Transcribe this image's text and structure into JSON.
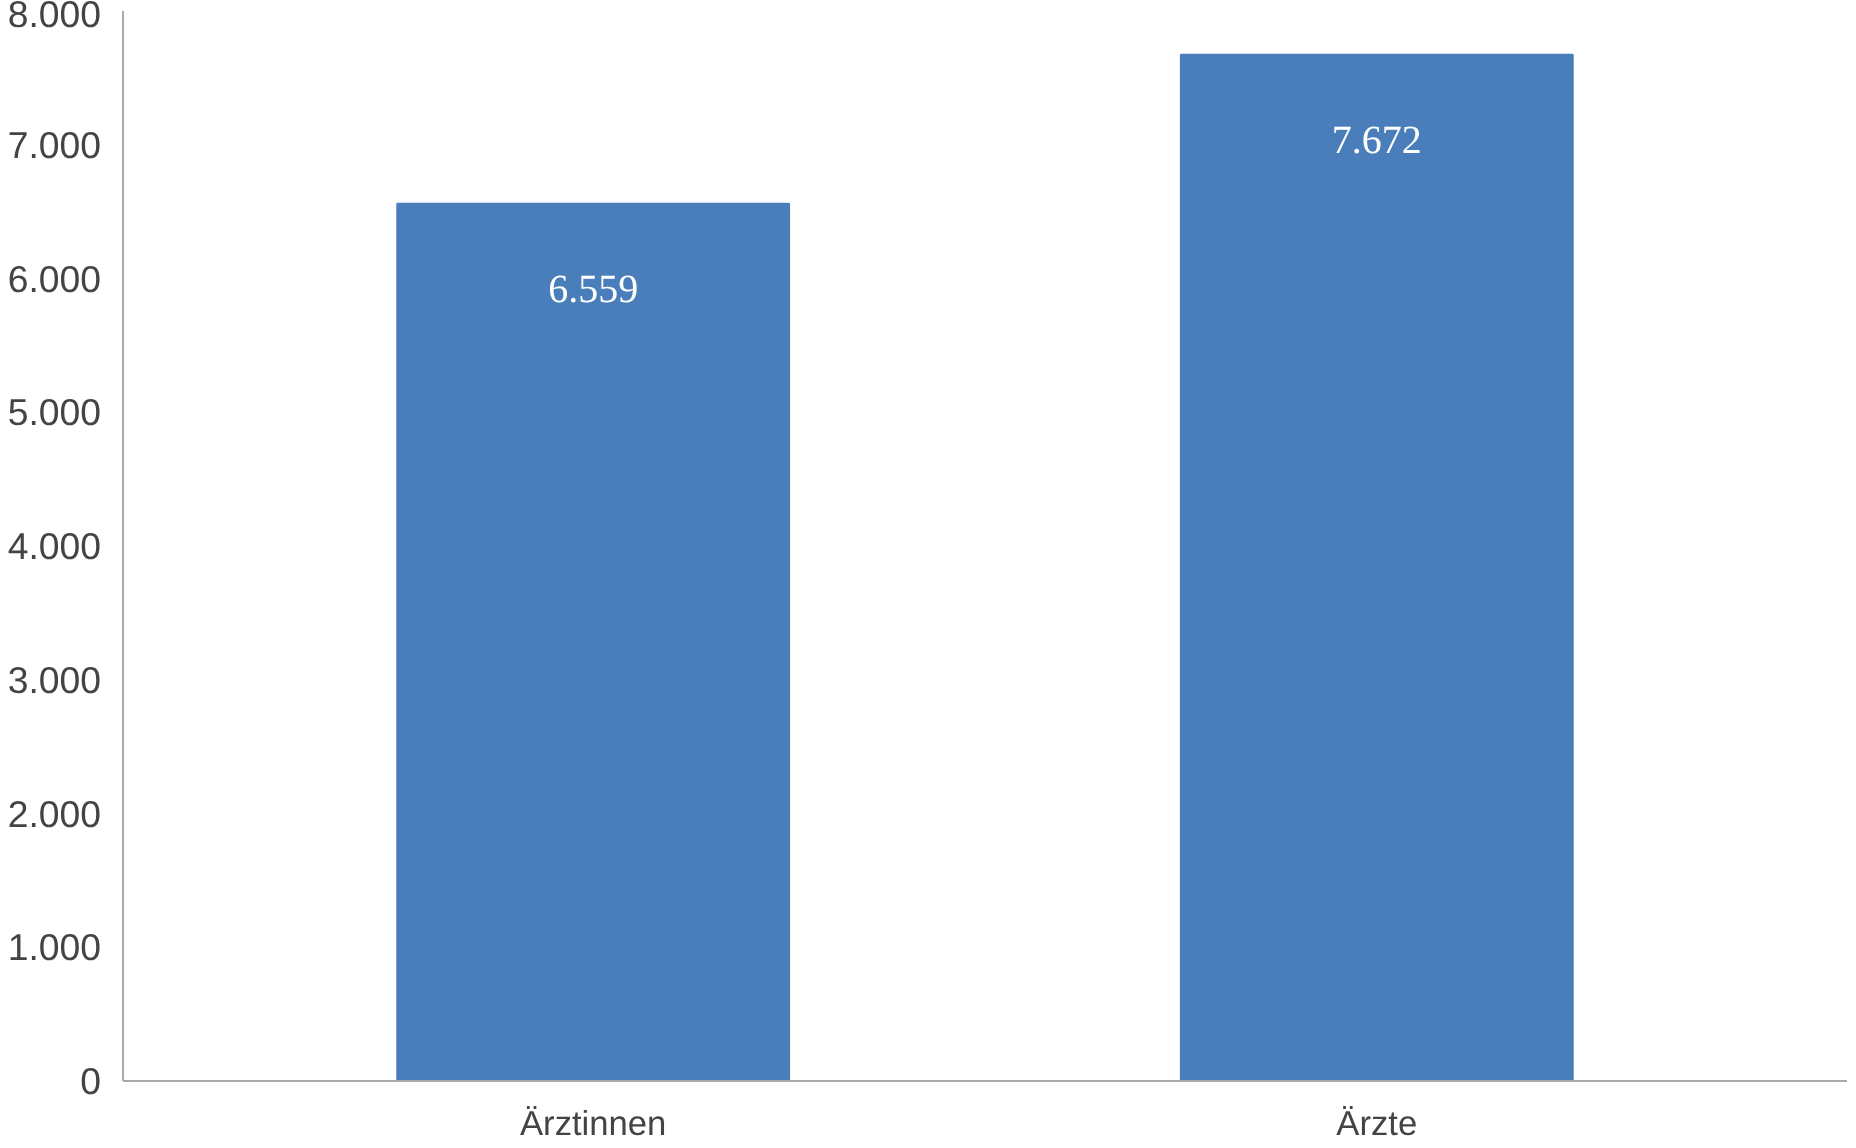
{
  "chart_data": {
    "type": "bar",
    "categories": [
      "Ärztinnen",
      "Ärzte"
    ],
    "values": [
      6559,
      7672
    ],
    "value_labels": [
      "6.559",
      "7.672"
    ],
    "color": "#4a7ebb",
    "ylim": [
      0,
      8000
    ],
    "yticks": [
      0,
      {
        "value": 1000,
        "label": "1.000"
      },
      {
        "value": 2000,
        "label": "2.000"
      },
      {
        "value": 3000,
        "label": "3.000"
      },
      {
        "value": 4000,
        "label": "4.000"
      },
      {
        "value": 5000,
        "label": "5.000"
      },
      {
        "value": 6000,
        "label": "6.000"
      },
      {
        "value": 7000,
        "label": "7.000"
      },
      {
        "value": 8000,
        "label": "8.000"
      }
    ],
    "grid": false
  }
}
